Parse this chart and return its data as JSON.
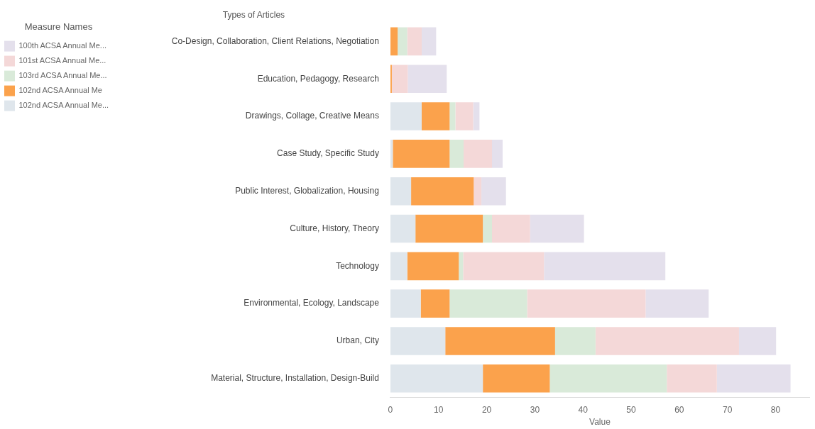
{
  "chart_data": {
    "type": "bar",
    "orientation": "horizontal",
    "stacked": true,
    "ylabel": "Types of Articles",
    "xlabel": "Value",
    "legend_title": "Measure Names",
    "legend": "top left",
    "categories": [
      "Co-Design, Collaboration, Client Relations, Negotiation",
      "Education, Pedagogy, Research",
      "Drawings, Collage, Creative Means",
      "Case Study, Specific Study",
      "Public Interest, Globalization, Housing",
      "Culture, History, Theory",
      "Technology",
      "Environmental, Ecology, Landscape",
      "Urban, City",
      "Material, Structure, Installation, Design-Build"
    ],
    "series": [
      {
        "name": "102nd ACSA Annual Me...",
        "color": "#dfe6ec",
        "values": [
          0,
          0,
          6.5,
          0.5,
          4.3,
          5.2,
          3.5,
          6.3,
          11.4,
          19.2
        ]
      },
      {
        "name": "102nd ACSA Annual Me",
        "color": "#fba24c",
        "values": [
          1.5,
          0.3,
          5.8,
          11.8,
          13,
          14,
          10.7,
          6,
          22.8,
          13.9
        ]
      },
      {
        "name": "103rd ACSA Annual Me...",
        "color": "#d9ead9",
        "values": [
          2,
          0,
          1.2,
          2.9,
          0,
          1.9,
          0.9,
          16.1,
          8.4,
          24.3
        ]
      },
      {
        "name": "101st ACSA Annual Me...",
        "color": "#f4d8d8",
        "values": [
          3,
          3.3,
          3.7,
          5.9,
          1.6,
          7.9,
          16.8,
          24.6,
          29.8,
          10.4
        ]
      },
      {
        "name": "100th ACSA Annual Me...",
        "color": "#e4e0ec",
        "values": [
          3,
          8.1,
          1.3,
          2.2,
          5.1,
          11.2,
          25.2,
          13.1,
          7.7,
          15.3
        ]
      }
    ],
    "xlim": [
      0,
      87
    ],
    "xticks": [
      0,
      10,
      20,
      30,
      40,
      50,
      60,
      70,
      80
    ],
    "grid": false
  }
}
